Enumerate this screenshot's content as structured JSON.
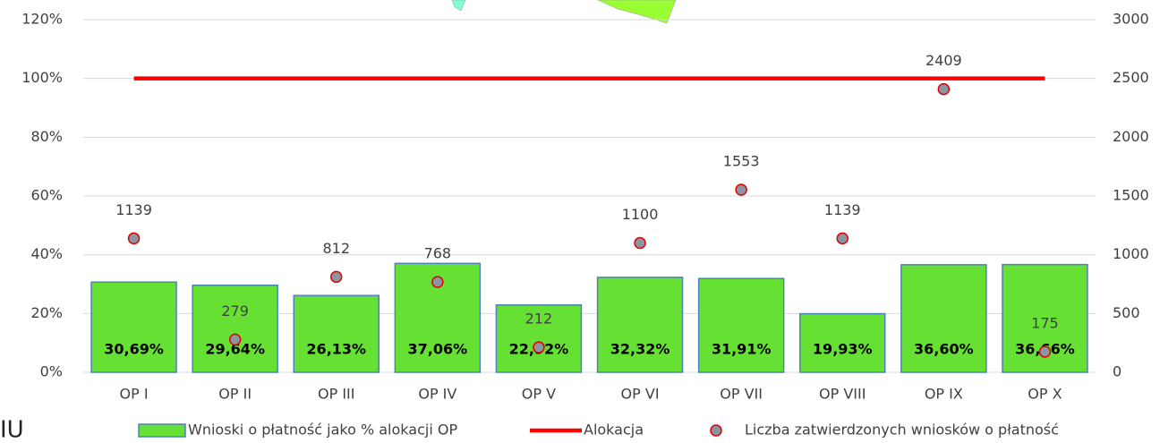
{
  "chart_data": {
    "type": "bar",
    "categories": [
      "OP I",
      "OP II",
      "OP III",
      "OP IV",
      "OP V",
      "OP VI",
      "OP VII",
      "OP VIII",
      "OP IX",
      "OP X"
    ],
    "series": [
      {
        "name": "Wnioski o płatność jako % alokacji OP",
        "type": "bar",
        "color": "#66e033",
        "edge_color": "#4f81bd",
        "values": [
          30.69,
          29.64,
          26.13,
          37.06,
          22.92,
          32.32,
          31.91,
          19.93,
          36.6,
          36.66
        ],
        "value_labels": [
          "30,69%",
          "29,64%",
          "26,13%",
          "37,06%",
          "22,92%",
          "32,32%",
          "31,91%",
          "19,93%",
          "36,60%",
          "36,66%"
        ]
      },
      {
        "name": "Alokacja",
        "type": "line",
        "color": "#ff0000",
        "values": [
          100,
          100,
          100,
          100,
          100,
          100,
          100,
          100,
          100,
          100
        ]
      },
      {
        "name": "Liczba zatwierdzonych wniosków o płatność",
        "type": "scatter",
        "axis": "y2",
        "color": "#8c96a0",
        "edge_color": "#e00000",
        "values": [
          1139,
          279,
          812,
          768,
          212,
          1100,
          1553,
          1139,
          2409,
          175
        ]
      }
    ],
    "ylim": [
      0,
      120
    ],
    "yticks": [
      {
        "value": 0,
        "label": "0%"
      },
      {
        "value": 20,
        "label": "20%"
      },
      {
        "value": 40,
        "label": "40%"
      },
      {
        "value": 60,
        "label": "60%"
      },
      {
        "value": 80,
        "label": "80%"
      },
      {
        "value": 100,
        "label": "100%"
      },
      {
        "value": 120,
        "label": "120%"
      }
    ],
    "y2lim": [
      0,
      3000
    ],
    "y2ticks": [
      0,
      500,
      1000,
      1500,
      2000,
      2500,
      3000
    ],
    "grid": true,
    "legend": "bottom",
    "annotations": [
      "IU"
    ]
  }
}
